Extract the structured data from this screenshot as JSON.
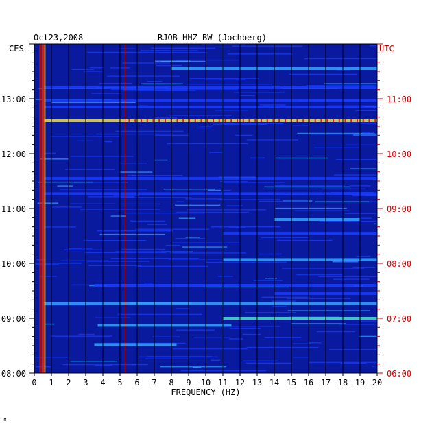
{
  "chart_data": {
    "type": "heatmap",
    "date": "Oct23,2008",
    "title": "RJOB HHZ BW (Jochberg)",
    "xlabel": "FREQUENCY (HZ)",
    "left_timezone": "CES",
    "right_timezone": "UTC",
    "xlim": [
      0,
      20
    ],
    "x_ticks": [
      "0",
      "1",
      "2",
      "3",
      "4",
      "5",
      "6",
      "7",
      "8",
      "9",
      "10",
      "11",
      "12",
      "13",
      "14",
      "15",
      "16",
      "17",
      "18",
      "19",
      "20"
    ],
    "left_time_ticks": [
      {
        "label": "08:00",
        "hour": 8
      },
      {
        "label": "09:00",
        "hour": 9
      },
      {
        "label": "10:00",
        "hour": 10
      },
      {
        "label": "11:00",
        "hour": 11
      },
      {
        "label": "12:00",
        "hour": 12
      },
      {
        "label": "13:00",
        "hour": 13
      }
    ],
    "right_time_ticks": [
      {
        "label": "06:00",
        "hour": 6
      },
      {
        "label": "07:00",
        "hour": 7
      },
      {
        "label": "08:00",
        "hour": 8
      },
      {
        "label": "09:00",
        "hour": 9
      },
      {
        "label": "10:00",
        "hour": 10
      },
      {
        "label": "11:00",
        "hour": 11
      }
    ],
    "time_range_left_hours": [
      8.0,
      14.0
    ],
    "colors": {
      "background": "#0a1a9e",
      "weak": "#1a3cff",
      "medium": "#2fa8ff",
      "strong": "#4ee0c8",
      "very_strong": "#f0e040",
      "peak": "#e02000",
      "utc_labels": "#d40000"
    },
    "continuous_lines": [
      {
        "freq_hz": 0.5,
        "intensity": "peak"
      },
      {
        "freq_hz": 11.0,
        "intensity": "strong"
      },
      {
        "freq_hz": 5.3,
        "intensity": "peak"
      }
    ],
    "horizontal_bands": [
      {
        "time_hour": 12.6,
        "from_hz": 0.5,
        "to_hz": 20,
        "intensity": "very_strong"
      },
      {
        "time_hour": 13.55,
        "from_hz": 8,
        "to_hz": 20,
        "intensity": "medium"
      },
      {
        "time_hour": 9.0,
        "from_hz": 11,
        "to_hz": 20,
        "intensity": "strong"
      },
      {
        "time_hour": 8.87,
        "from_hz": 3.7,
        "to_hz": 11.5,
        "intensity": "medium"
      },
      {
        "time_hour": 8.52,
        "from_hz": 3.5,
        "to_hz": 8.3,
        "intensity": "medium"
      },
      {
        "time_hour": 9.27,
        "from_hz": 0.5,
        "to_hz": 20,
        "intensity": "medium"
      },
      {
        "time_hour": 9.6,
        "from_hz": 3.5,
        "to_hz": 20,
        "intensity": "weak"
      },
      {
        "time_hour": 10.07,
        "from_hz": 11,
        "to_hz": 20,
        "intensity": "medium"
      },
      {
        "time_hour": 11.27,
        "from_hz": 0.5,
        "to_hz": 20,
        "intensity": "weak"
      },
      {
        "time_hour": 11.55,
        "from_hz": 0.5,
        "to_hz": 20,
        "intensity": "weak"
      },
      {
        "time_hour": 12.85,
        "from_hz": 0.5,
        "to_hz": 20,
        "intensity": "weak"
      },
      {
        "time_hour": 12.97,
        "from_hz": 0.5,
        "to_hz": 20,
        "intensity": "weak"
      },
      {
        "time_hour": 13.2,
        "from_hz": 0.5,
        "to_hz": 20,
        "intensity": "weak"
      },
      {
        "time_hour": 9.45,
        "from_hz": 14,
        "to_hz": 20,
        "intensity": "weak"
      },
      {
        "time_hour": 10.8,
        "from_hz": 14,
        "to_hz": 19,
        "intensity": "medium"
      },
      {
        "time_hour": 10.55,
        "from_hz": 11,
        "to_hz": 20,
        "intensity": "weak"
      }
    ],
    "footnote": "-M-"
  }
}
